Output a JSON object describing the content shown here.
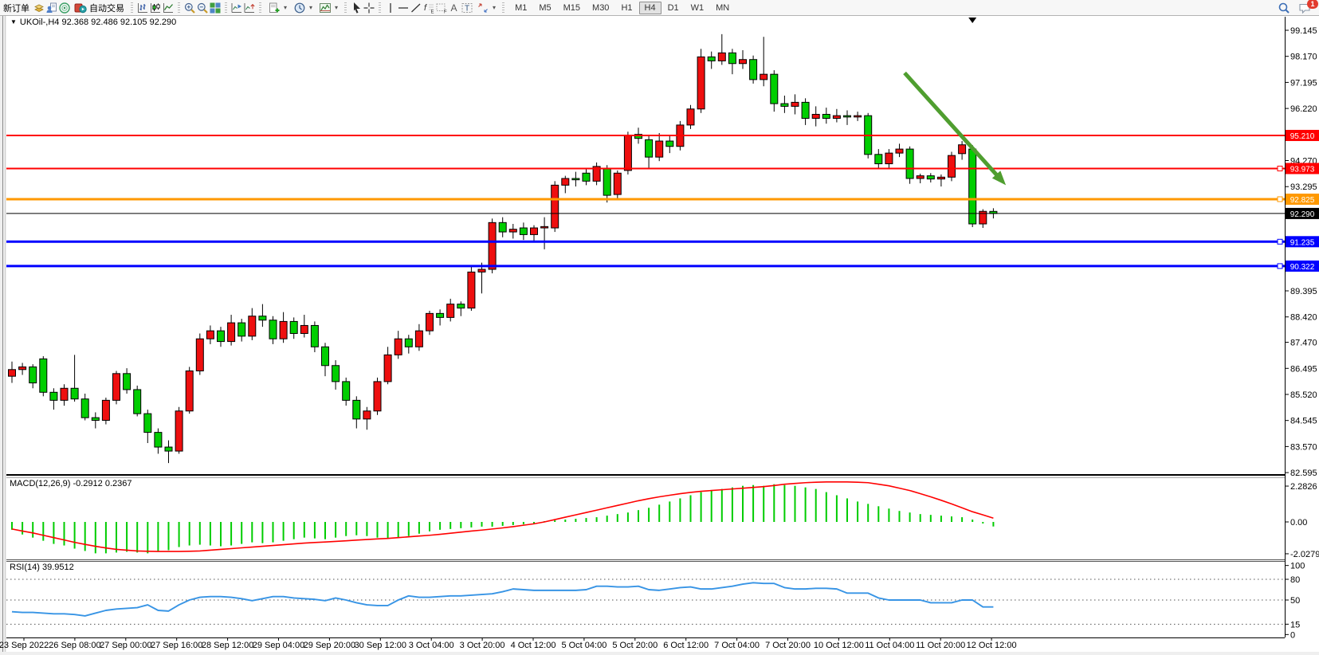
{
  "toolbar": {
    "new_order": "新订单",
    "auto_trading": "自动交易",
    "timeframes": [
      "M1",
      "M5",
      "M15",
      "M30",
      "H1",
      "H4",
      "D1",
      "W1",
      "MN"
    ],
    "active_timeframe": "H4",
    "badge": "1",
    "icon_names": [
      "gold-docs-icon",
      "profiles-icon",
      "market-watch-icon",
      "auto-trading-icon",
      "bar-chart-icon",
      "candlestick-chart-icon",
      "line-chart-icon",
      "zoom-in-icon",
      "zoom-out-icon",
      "tile-windows-icon",
      "arrange-windows-icon",
      "arrange-windows-alt-icon",
      "new-chart-icon",
      "period-clock-icon",
      "indicators-icon",
      "cursor-icon",
      "crosshair-icon",
      "vertical-line-icon",
      "horizontal-line-icon",
      "trendline-icon",
      "fibonacci-icon",
      "channel-grid-icon",
      "text-icon",
      "text-label-icon",
      "arrow-tools-icon",
      "search-icon",
      "chat-icon"
    ]
  },
  "chart": {
    "symbol_line": "UKOil-,H4  92.368 92.486 92.105 92.290"
  },
  "chart_data": [
    {
      "type": "candlestick",
      "symbol": "UKOil-",
      "timeframe": "H4",
      "ylim": [
        82.45,
        99.45
      ],
      "yticks": [
        "99.145",
        "98.170",
        "97.195",
        "96.220",
        "94.270",
        "93.295",
        "89.395",
        "88.420",
        "87.470",
        "86.495",
        "85.520",
        "84.545",
        "83.570",
        "82.595"
      ],
      "colors": {
        "bull": "#ee0f0f",
        "bear": "#00ce00",
        "wick": "#000000"
      },
      "hlines": [
        {
          "price": "95.210",
          "color": "#ff0000",
          "width": 2,
          "handle": false
        },
        {
          "price": "93.973",
          "color": "#ff0000",
          "width": 2,
          "handle": true
        },
        {
          "price": "92.825",
          "color": "#ff9900",
          "width": 3,
          "handle": true
        },
        {
          "price": "92.290",
          "color": "#000000",
          "width": 1,
          "handle": false
        },
        {
          "price": "91.235",
          "color": "#0000ff",
          "width": 3,
          "handle": true
        },
        {
          "price": "90.322",
          "color": "#0000ff",
          "width": 3,
          "handle": true
        }
      ],
      "annotations": {
        "trend_arrow": {
          "from_bar": 85.5,
          "from_price": 97.55,
          "to_bar": 95.2,
          "to_price": 93.35,
          "color": "#4f9e2f"
        },
        "shift_marker_bar": 92
      },
      "dates": [
        "23 Sep 2022",
        "26 Sep 08:00",
        "27 Sep 00:00",
        "27 Sep 16:00",
        "28 Sep 12:00",
        "29 Sep 04:00",
        "29 Sep 20:00",
        "30 Sep 12:00",
        "3 Oct 04:00",
        "3 Oct 20:00",
        "4 Oct 12:00",
        "5 Oct 04:00",
        "5 Oct 20:00",
        "6 Oct 12:00",
        "7 Oct 04:00",
        "7 Oct 20:00",
        "10 Oct 12:00",
        "11 Oct 04:00",
        "11 Oct 20:00",
        "12 Oct 12:00"
      ],
      "ohlc": [
        [
          86.2,
          86.75,
          85.95,
          86.45
        ],
        [
          86.45,
          86.7,
          86.25,
          86.55
        ],
        [
          86.55,
          86.65,
          85.75,
          85.95
        ],
        [
          86.85,
          86.95,
          85.45,
          85.6
        ],
        [
          85.6,
          85.75,
          84.95,
          85.3
        ],
        [
          85.3,
          85.9,
          85.1,
          85.75
        ],
        [
          85.75,
          87.0,
          85.25,
          85.35
        ],
        [
          85.35,
          85.55,
          84.55,
          84.65
        ],
        [
          84.65,
          84.85,
          84.25,
          84.55
        ],
        [
          84.55,
          85.4,
          84.4,
          85.3
        ],
        [
          85.3,
          86.4,
          85.15,
          86.3
        ],
        [
          86.3,
          86.5,
          85.55,
          85.7
        ],
        [
          85.7,
          85.85,
          84.7,
          84.8
        ],
        [
          84.8,
          84.95,
          83.7,
          84.1
        ],
        [
          84.1,
          84.25,
          83.3,
          83.55
        ],
        [
          83.55,
          83.8,
          82.95,
          83.4
        ],
        [
          83.4,
          85.05,
          83.3,
          84.9
        ],
        [
          84.9,
          86.55,
          84.8,
          86.4
        ],
        [
          86.4,
          87.8,
          86.25,
          87.6
        ],
        [
          87.6,
          88.1,
          87.4,
          87.9
        ],
        [
          87.9,
          88.05,
          87.3,
          87.5
        ],
        [
          87.5,
          88.5,
          87.35,
          88.2
        ],
        [
          88.2,
          88.35,
          87.5,
          87.7
        ],
        [
          87.7,
          88.75,
          87.55,
          88.45
        ],
        [
          88.45,
          88.9,
          88.05,
          88.3
        ],
        [
          88.3,
          88.45,
          87.4,
          87.6
        ],
        [
          87.6,
          88.6,
          87.45,
          88.25
        ],
        [
          88.25,
          88.4,
          87.6,
          87.8
        ],
        [
          87.8,
          88.5,
          87.65,
          88.1
        ],
        [
          88.1,
          88.25,
          87.1,
          87.3
        ],
        [
          87.3,
          87.45,
          86.2,
          86.6
        ],
        [
          86.6,
          86.8,
          85.7,
          86.0
        ],
        [
          86.0,
          86.15,
          85.1,
          85.3
        ],
        [
          85.3,
          85.45,
          84.25,
          84.6
        ],
        [
          84.6,
          85.05,
          84.2,
          84.9
        ],
        [
          84.9,
          86.15,
          84.75,
          86.0
        ],
        [
          86.0,
          87.3,
          85.9,
          87.0
        ],
        [
          87.0,
          87.9,
          86.85,
          87.6
        ],
        [
          87.6,
          87.75,
          87.05,
          87.3
        ],
        [
          87.3,
          88.15,
          87.15,
          87.9
        ],
        [
          87.9,
          88.65,
          87.75,
          88.55
        ],
        [
          88.55,
          88.7,
          88.1,
          88.4
        ],
        [
          88.4,
          89.1,
          88.25,
          88.9
        ],
        [
          88.9,
          89.0,
          88.45,
          88.75
        ],
        [
          88.75,
          90.3,
          88.65,
          90.1
        ],
        [
          90.1,
          90.45,
          89.3,
          90.2
        ],
        [
          90.2,
          92.1,
          90.05,
          91.95
        ],
        [
          91.95,
          92.15,
          91.4,
          91.6
        ],
        [
          91.6,
          91.9,
          91.35,
          91.7
        ],
        [
          91.75,
          91.95,
          91.3,
          91.5
        ],
        [
          91.5,
          91.85,
          91.25,
          91.75
        ],
        [
          91.75,
          92.15,
          90.95,
          91.8
        ],
        [
          91.75,
          93.5,
          91.6,
          93.35
        ],
        [
          93.35,
          93.7,
          93.05,
          93.6
        ],
        [
          93.6,
          93.85,
          93.3,
          93.55
        ],
        [
          93.8,
          93.95,
          93.35,
          93.5
        ],
        [
          93.5,
          94.2,
          93.35,
          94.05
        ],
        [
          93.96,
          94.1,
          92.7,
          92.97
        ],
        [
          93.0,
          93.9,
          92.85,
          93.8
        ],
        [
          93.9,
          95.35,
          93.75,
          95.2
        ],
        [
          95.25,
          95.5,
          94.9,
          95.1
        ],
        [
          95.05,
          95.2,
          93.95,
          94.4
        ],
        [
          94.4,
          95.3,
          94.25,
          95.0
        ],
        [
          95.0,
          95.2,
          94.55,
          94.8
        ],
        [
          94.8,
          95.75,
          94.65,
          95.6
        ],
        [
          95.6,
          96.35,
          95.45,
          96.2
        ],
        [
          96.2,
          98.45,
          96.05,
          98.15
        ],
        [
          98.15,
          98.35,
          97.7,
          98.0
        ],
        [
          98.0,
          99.0,
          97.85,
          98.3
        ],
        [
          98.3,
          98.45,
          97.5,
          97.9
        ],
        [
          97.9,
          98.4,
          97.7,
          98.05
        ],
        [
          98.05,
          98.2,
          97.15,
          97.3
        ],
        [
          97.3,
          98.9,
          97.05,
          97.5
        ],
        [
          97.5,
          97.65,
          96.1,
          96.4
        ],
        [
          96.4,
          96.7,
          96.05,
          96.3
        ],
        [
          96.3,
          96.75,
          96.0,
          96.45
        ],
        [
          96.45,
          96.6,
          95.6,
          95.85
        ],
        [
          95.85,
          96.3,
          95.55,
          96.0
        ],
        [
          96.0,
          96.25,
          95.65,
          95.85
        ],
        [
          95.85,
          96.2,
          95.7,
          95.95
        ],
        [
          95.95,
          96.15,
          95.6,
          95.9
        ],
        [
          95.9,
          96.1,
          95.75,
          95.95
        ],
        [
          95.95,
          96.05,
          94.35,
          94.5
        ],
        [
          94.5,
          94.7,
          93.95,
          94.15
        ],
        [
          94.15,
          94.7,
          94.0,
          94.55
        ],
        [
          94.55,
          94.9,
          94.4,
          94.7
        ],
        [
          94.7,
          94.8,
          93.4,
          93.6
        ],
        [
          93.6,
          93.78,
          93.42,
          93.7
        ],
        [
          93.7,
          93.8,
          93.45,
          93.58
        ],
        [
          93.58,
          93.75,
          93.3,
          93.65
        ],
        [
          93.65,
          94.6,
          93.5,
          94.46
        ],
        [
          94.53,
          95.0,
          94.3,
          94.86
        ],
        [
          94.7,
          94.85,
          91.78,
          91.9
        ],
        [
          91.9,
          92.45,
          91.75,
          92.37
        ],
        [
          92.368,
          92.486,
          92.105,
          92.29
        ]
      ]
    },
    {
      "type": "bar",
      "name": "MACD",
      "label": "MACD(12,26,9) -0.2912 0.2367",
      "main_value": "-0.2912",
      "signal_value": "0.2367",
      "yticks": [
        "2.2826",
        "0.00",
        "-2.0279"
      ],
      "colors": {
        "histogram": "#00cc00",
        "signal": "#ff0000"
      },
      "values": [
        -0.5,
        -0.8,
        -1.0,
        -1.2,
        -1.4,
        -1.5,
        -1.7,
        -1.85,
        -2.0,
        -2.0,
        -1.95,
        -1.9,
        -1.95,
        -2.0,
        -1.9,
        -1.8,
        -1.6,
        -1.5,
        -1.45,
        -1.5,
        -1.55,
        -1.5,
        -1.4,
        -1.3,
        -1.35,
        -1.3,
        -1.2,
        -1.1,
        -1.0,
        -1.05,
        -1.1,
        -1.0,
        -0.9,
        -0.85,
        -0.9,
        -1.0,
        -1.05,
        -1.0,
        -0.9,
        -0.75,
        -0.6,
        -0.5,
        -0.45,
        -0.4,
        -0.35,
        -0.3,
        -0.3,
        -0.25,
        -0.2,
        -0.15,
        -0.1,
        0.05,
        0.1,
        0.15,
        0.2,
        0.25,
        0.3,
        0.4,
        0.5,
        0.6,
        0.75,
        0.9,
        1.1,
        1.3,
        1.5,
        1.7,
        1.9,
        2.0,
        2.1,
        2.2,
        2.3,
        2.35,
        2.3,
        2.4,
        2.35,
        2.3,
        2.2,
        2.1,
        1.9,
        1.7,
        1.5,
        1.3,
        1.15,
        1.0,
        0.85,
        0.7,
        0.6,
        0.5,
        0.45,
        0.4,
        0.35,
        0.3,
        0.15,
        -0.1,
        -0.29
      ],
      "signal": [
        -0.45,
        -0.58,
        -0.7,
        -0.85,
        -1.0,
        -1.15,
        -1.3,
        -1.43,
        -1.55,
        -1.66,
        -1.75,
        -1.8,
        -1.85,
        -1.87,
        -1.88,
        -1.88,
        -1.88,
        -1.87,
        -1.85,
        -1.8,
        -1.75,
        -1.7,
        -1.65,
        -1.6,
        -1.55,
        -1.5,
        -1.45,
        -1.4,
        -1.35,
        -1.31,
        -1.28,
        -1.24,
        -1.2,
        -1.16,
        -1.12,
        -1.08,
        -1.05,
        -1.0,
        -0.95,
        -0.9,
        -0.85,
        -0.79,
        -0.72,
        -0.65,
        -0.58,
        -0.52,
        -0.45,
        -0.38,
        -0.3,
        -0.21,
        -0.12,
        0.0,
        0.15,
        0.3,
        0.45,
        0.6,
        0.75,
        0.9,
        1.05,
        1.2,
        1.35,
        1.48,
        1.6,
        1.7,
        1.8,
        1.88,
        1.95,
        2.0,
        2.05,
        2.1,
        2.15,
        2.2,
        2.25,
        2.32,
        2.4,
        2.45,
        2.5,
        2.53,
        2.55,
        2.55,
        2.55,
        2.53,
        2.5,
        2.4,
        2.3,
        2.15,
        2.0,
        1.8,
        1.6,
        1.38,
        1.15,
        0.9,
        0.65,
        0.45,
        0.24
      ]
    },
    {
      "type": "line",
      "name": "RSI",
      "label": "RSI(14) 39.9512",
      "last_value": "39.9512",
      "levels": [
        80,
        50,
        15
      ],
      "yticks": [
        "100",
        "80",
        "50",
        "15",
        "0"
      ],
      "color": "#3794e5",
      "values": [
        33,
        32,
        32,
        31,
        30,
        30,
        29,
        27,
        31,
        35,
        37,
        38,
        39,
        43,
        35,
        34,
        43,
        50,
        54,
        55,
        55,
        54,
        52,
        49,
        52,
        55,
        55,
        53,
        52,
        51,
        49,
        53,
        50,
        46,
        43,
        42,
        42,
        50,
        56,
        54,
        54,
        55,
        56,
        56,
        57,
        58,
        59,
        62,
        66,
        65,
        64,
        64,
        64,
        64,
        64,
        65,
        70,
        70,
        69,
        69,
        70,
        65,
        64,
        66,
        68,
        69,
        66,
        66,
        68,
        70,
        73,
        75,
        74,
        74,
        68,
        66,
        66,
        67,
        67,
        66,
        60,
        60,
        60,
        53,
        50,
        50,
        50,
        50,
        46,
        46,
        46,
        50,
        50,
        40,
        39.95
      ]
    }
  ]
}
